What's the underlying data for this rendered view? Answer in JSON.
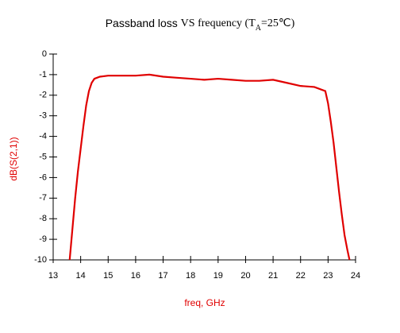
{
  "chart_data": {
    "type": "line",
    "title": [
      "Passband loss ",
      "VS",
      " frequency (T",
      "A",
      "=25℃)"
    ],
    "x_label": "freq, GHz",
    "y_label": "dB(S(2,1))",
    "xlim": [
      13,
      24
    ],
    "xticks": [
      13,
      14,
      15,
      16,
      17,
      18,
      19,
      20,
      21,
      22,
      23,
      24
    ],
    "ylim": [
      -10,
      0
    ],
    "yticks": [
      0,
      -1,
      -2,
      -3,
      -4,
      -5,
      -6,
      -7,
      -8,
      -9,
      -10
    ],
    "series": [
      {
        "color": "#e00000",
        "x": [
          13.6,
          13.7,
          13.8,
          13.9,
          14.0,
          14.1,
          14.2,
          14.3,
          14.4,
          14.5,
          14.7,
          15.0,
          15.5,
          16.0,
          16.5,
          17.0,
          17.5,
          18.0,
          18.5,
          19.0,
          19.5,
          20.0,
          20.5,
          21.0,
          21.5,
          22.0,
          22.5,
          22.9,
          23.0,
          23.1,
          23.2,
          23.3,
          23.4,
          23.5,
          23.6,
          23.7,
          23.78
        ],
        "values": [
          -10,
          -8.5,
          -7,
          -5.7,
          -4.6,
          -3.5,
          -2.5,
          -1.8,
          -1.4,
          -1.2,
          -1.1,
          -1.05,
          -1.05,
          -1.05,
          -1.0,
          -1.1,
          -1.15,
          -1.2,
          -1.25,
          -1.2,
          -1.25,
          -1.3,
          -1.3,
          -1.25,
          -1.4,
          -1.55,
          -1.6,
          -1.8,
          -2.4,
          -3.3,
          -4.3,
          -5.5,
          -6.7,
          -7.8,
          -8.8,
          -9.5,
          -10
        ]
      }
    ]
  }
}
